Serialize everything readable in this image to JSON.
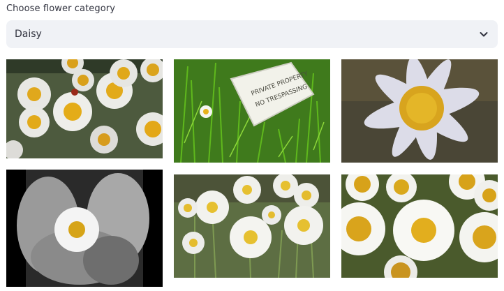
{
  "form": {
    "label": "Choose flower category",
    "selected": "Daisy",
    "chevron_icon": "chevron-down-icon"
  },
  "gallery": {
    "images": [
      {
        "name": "daisy-image-1",
        "description_icon": "daisy-field-photo"
      },
      {
        "name": "daisy-image-2",
        "description_icon": "daisy-grass-sign-photo"
      },
      {
        "name": "daisy-image-3",
        "description_icon": "daisy-closeup-photo"
      },
      {
        "name": "daisy-image-4",
        "description_icon": "daisy-hands-photo"
      },
      {
        "name": "daisy-image-5",
        "description_icon": "daisy-meadow-photo"
      },
      {
        "name": "daisy-image-6",
        "description_icon": "daisy-cluster-photo"
      }
    ],
    "sign_text": [
      "PRIVATE PROPERTY",
      "NO TRESPASSING"
    ]
  }
}
